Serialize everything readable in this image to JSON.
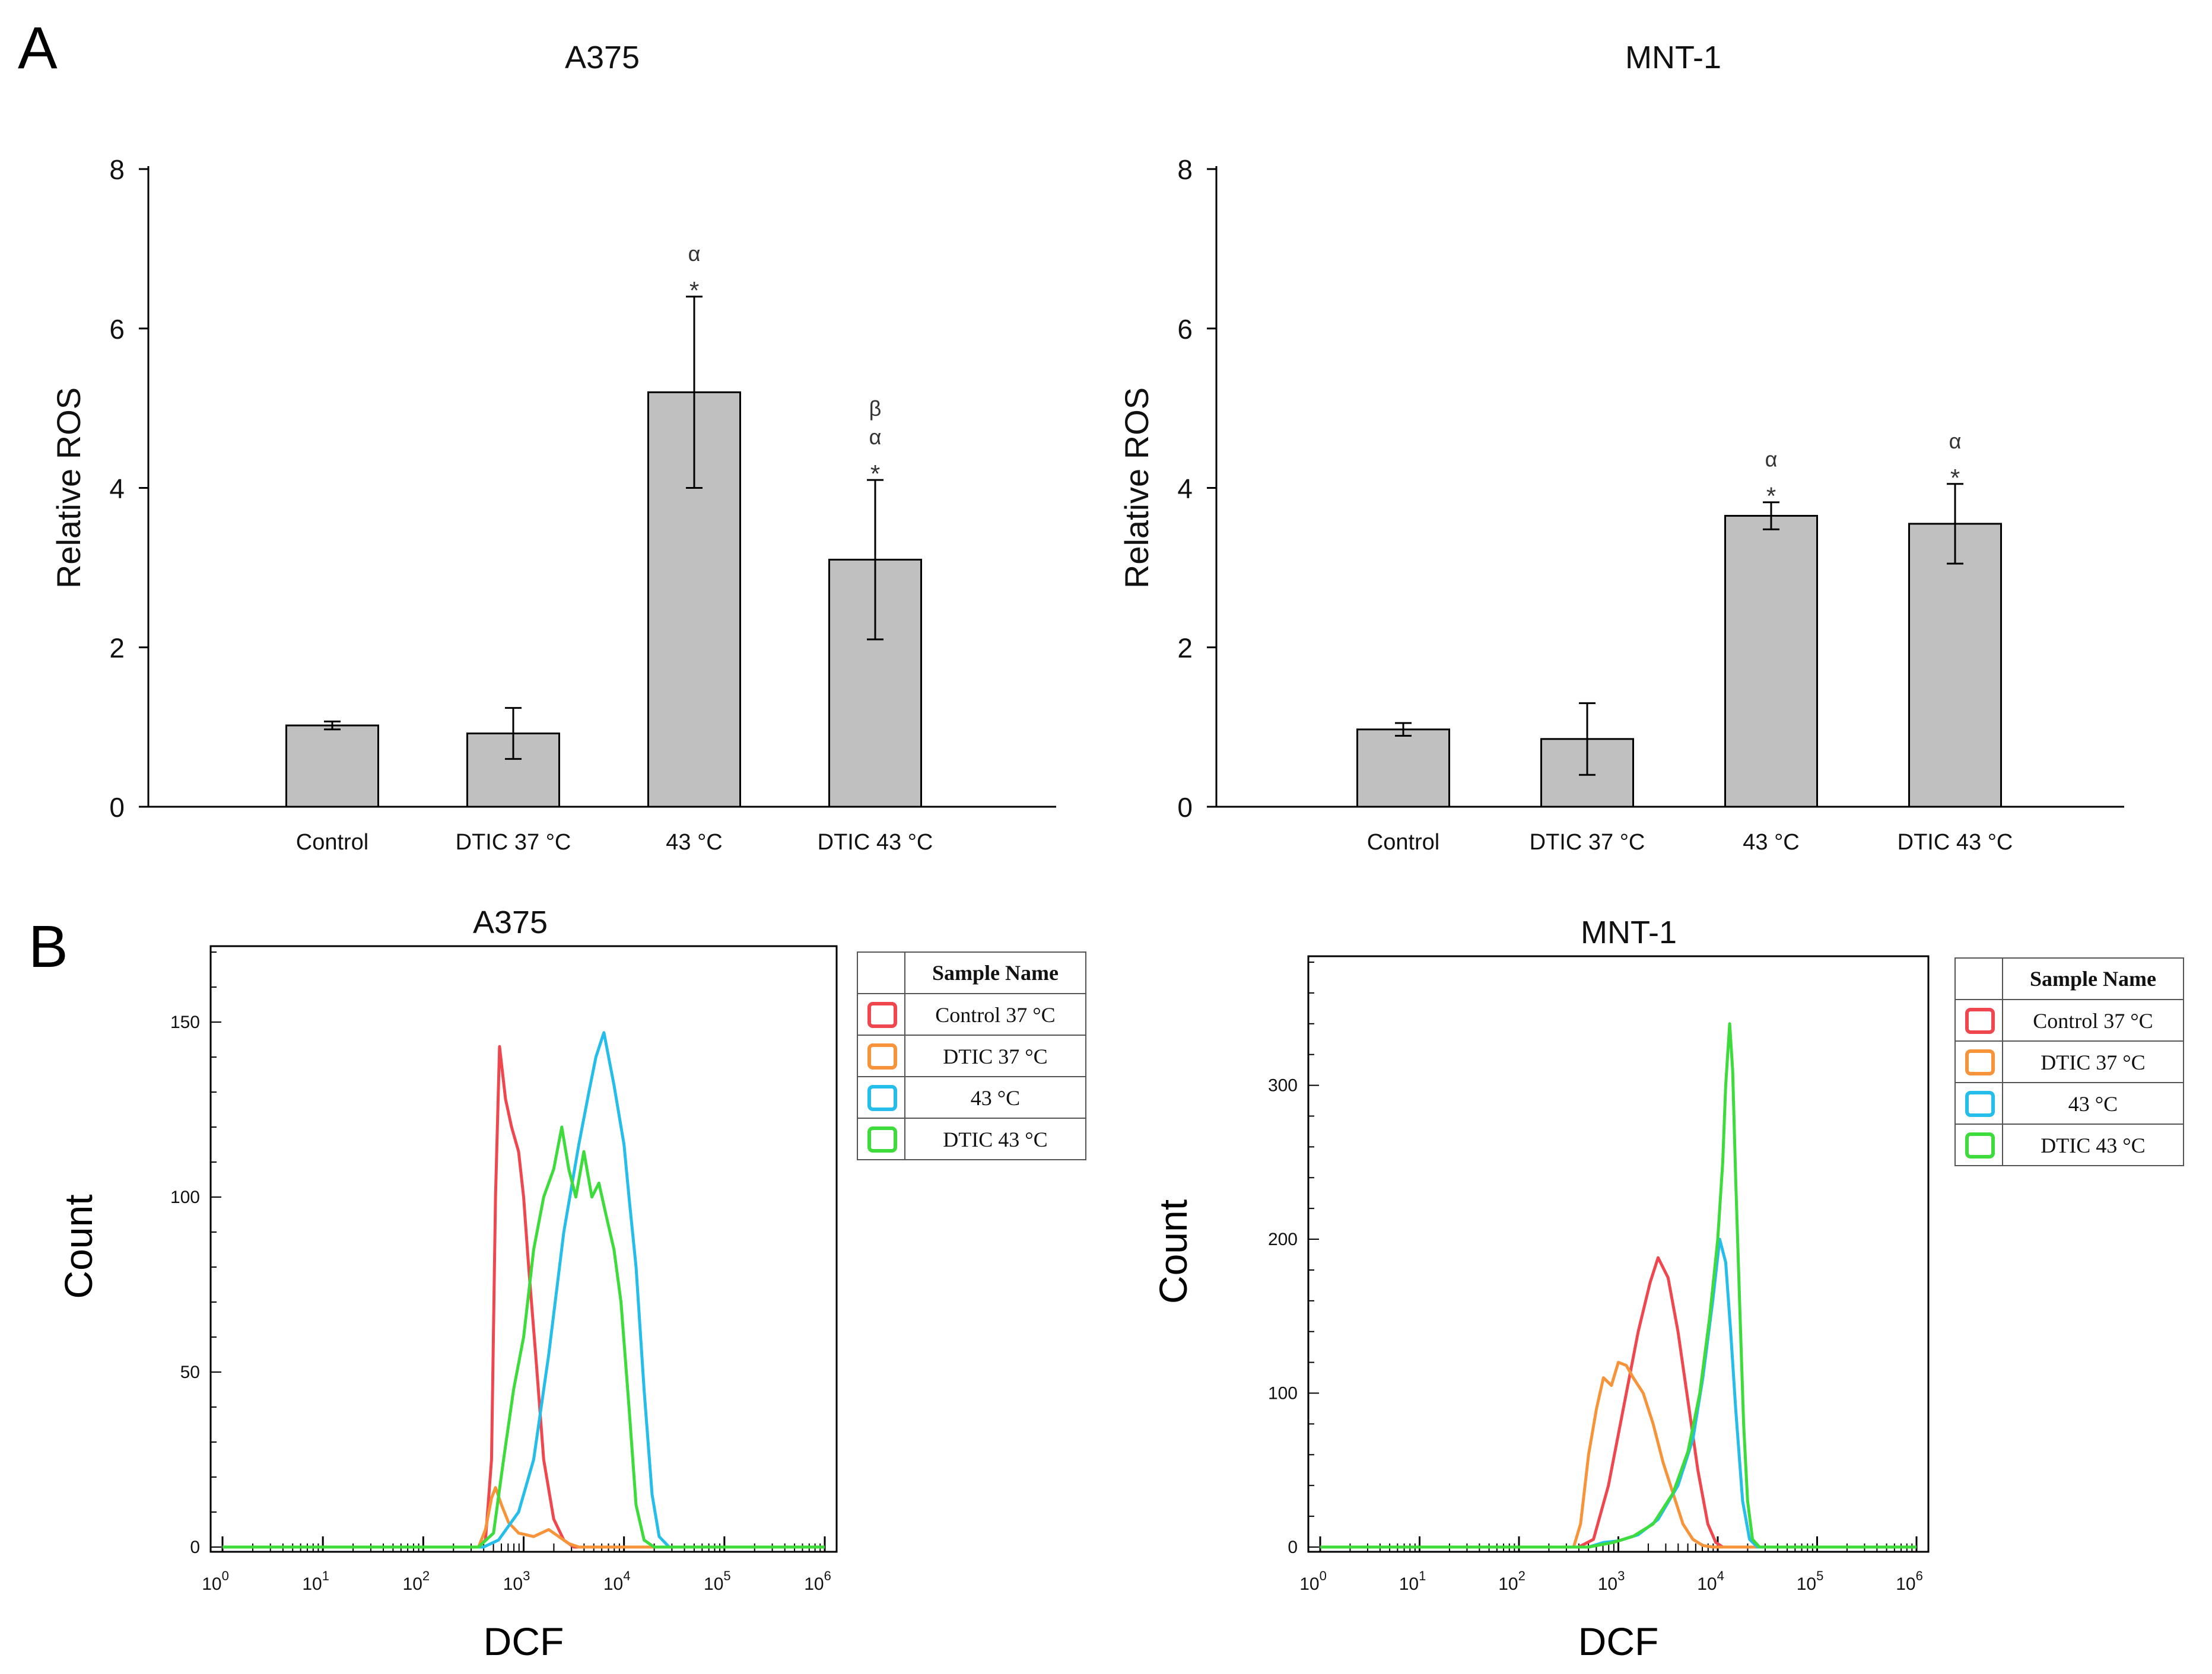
{
  "panel_labels": [
    "A",
    "B"
  ],
  "chart_data": [
    {
      "type": "bar",
      "title": "A375",
      "xlabel": "",
      "ylabel": "Relative ROS",
      "ylim": [
        0,
        8
      ],
      "yticks": [
        "0",
        "2",
        "4",
        "6",
        "8"
      ],
      "categories": [
        "Control",
        "DTIC 37 °C",
        "43 °C",
        "DTIC 43 °C"
      ],
      "values": [
        1.02,
        0.92,
        5.2,
        3.1
      ],
      "errors": [
        0.05,
        0.32,
        1.2,
        1.0
      ],
      "annotations": [
        [],
        [],
        [
          "α",
          "*"
        ],
        [
          "β",
          "α",
          "*"
        ]
      ],
      "bar_color": "#c0c0c0"
    },
    {
      "type": "bar",
      "title": "MNT-1",
      "xlabel": "",
      "ylabel": "Relative ROS",
      "ylim": [
        0,
        8
      ],
      "yticks": [
        "0",
        "2",
        "4",
        "6",
        "8"
      ],
      "categories": [
        "Control",
        "DTIC 37 °C",
        "43 °C",
        "DTIC 43 °C"
      ],
      "values": [
        0.97,
        0.85,
        3.65,
        3.55
      ],
      "errors": [
        0.08,
        0.45,
        0.17,
        0.5
      ],
      "annotations": [
        [],
        [],
        [
          "α",
          "*"
        ],
        [
          "α",
          "*"
        ]
      ],
      "bar_color": "#c0c0c0"
    },
    {
      "type": "line",
      "title": "A375",
      "xlabel": "DCF",
      "ylabel": "Count",
      "xscale": "log",
      "xlim": [
        0,
        6
      ],
      "ylim": [
        0,
        170
      ],
      "yticks": [
        0,
        50,
        100,
        150
      ],
      "xtick_labels": [
        "10",
        "10",
        "10",
        "10",
        "10",
        "10",
        "10"
      ],
      "xtick_exponents": [
        "0",
        "1",
        "2",
        "3",
        "4",
        "5",
        "6"
      ],
      "legend_title": "Sample Name",
      "series": [
        {
          "name": "Control 37 °C",
          "color": "#f0474e",
          "points": [
            [
              0,
              0
            ],
            [
              2.55,
              0
            ],
            [
              2.62,
              2
            ],
            [
              2.68,
              25
            ],
            [
              2.72,
              100
            ],
            [
              2.76,
              143
            ],
            [
              2.82,
              128
            ],
            [
              2.88,
              120
            ],
            [
              2.95,
              113
            ],
            [
              3.0,
              100
            ],
            [
              3.05,
              80
            ],
            [
              3.12,
              55
            ],
            [
              3.2,
              25
            ],
            [
              3.3,
              8
            ],
            [
              3.4,
              2
            ],
            [
              3.5,
              0
            ],
            [
              6,
              0
            ]
          ]
        },
        {
          "name": "DTIC 37 °C",
          "color": "#f7943a",
          "points": [
            [
              0,
              0
            ],
            [
              2.55,
              0
            ],
            [
              2.62,
              5
            ],
            [
              2.68,
              14
            ],
            [
              2.72,
              17
            ],
            [
              2.78,
              12
            ],
            [
              2.85,
              7
            ],
            [
              2.95,
              4
            ],
            [
              3.1,
              3
            ],
            [
              3.25,
              5
            ],
            [
              3.35,
              3
            ],
            [
              3.45,
              1
            ],
            [
              3.55,
              0
            ],
            [
              6,
              0
            ]
          ]
        },
        {
          "name": "43 °C",
          "color": "#25bde9",
          "points": [
            [
              0,
              0
            ],
            [
              2.6,
              0
            ],
            [
              2.75,
              2
            ],
            [
              2.95,
              10
            ],
            [
              3.1,
              25
            ],
            [
              3.25,
              55
            ],
            [
              3.4,
              90
            ],
            [
              3.55,
              115
            ],
            [
              3.65,
              130
            ],
            [
              3.72,
              140
            ],
            [
              3.8,
              147
            ],
            [
              3.9,
              132
            ],
            [
              4.0,
              115
            ],
            [
              4.05,
              100
            ],
            [
              4.12,
              80
            ],
            [
              4.2,
              45
            ],
            [
              4.28,
              15
            ],
            [
              4.35,
              3
            ],
            [
              4.45,
              0
            ],
            [
              6,
              0
            ]
          ]
        },
        {
          "name": "DTIC 43 °C",
          "color": "#3ddc3c",
          "points": [
            [
              0,
              0
            ],
            [
              2.55,
              0
            ],
            [
              2.7,
              4
            ],
            [
              2.8,
              25
            ],
            [
              2.9,
              45
            ],
            [
              3.0,
              60
            ],
            [
              3.1,
              85
            ],
            [
              3.2,
              100
            ],
            [
              3.3,
              108
            ],
            [
              3.38,
              120
            ],
            [
              3.45,
              108
            ],
            [
              3.52,
              100
            ],
            [
              3.6,
              113
            ],
            [
              3.68,
              100
            ],
            [
              3.75,
              104
            ],
            [
              3.82,
              95
            ],
            [
              3.9,
              85
            ],
            [
              3.97,
              70
            ],
            [
              4.05,
              40
            ],
            [
              4.12,
              12
            ],
            [
              4.2,
              2
            ],
            [
              4.3,
              0
            ],
            [
              6,
              0
            ]
          ]
        }
      ]
    },
    {
      "type": "line",
      "title": "MNT-1",
      "xlabel": "DCF",
      "ylabel": "Count",
      "xscale": "log",
      "xlim": [
        0,
        6
      ],
      "ylim": [
        0,
        380
      ],
      "yticks": [
        0,
        100,
        200,
        300
      ],
      "xtick_labels": [
        "10",
        "10",
        "10",
        "10",
        "10",
        "10",
        "10"
      ],
      "xtick_exponents": [
        "0",
        "1",
        "2",
        "3",
        "4",
        "5",
        "6"
      ],
      "legend_title": "Sample Name",
      "series": [
        {
          "name": "Control 37 °C",
          "color": "#f0474e",
          "points": [
            [
              0,
              0
            ],
            [
              2.6,
              0
            ],
            [
              2.75,
              5
            ],
            [
              2.9,
              40
            ],
            [
              3.05,
              90
            ],
            [
              3.2,
              140
            ],
            [
              3.32,
              172
            ],
            [
              3.4,
              188
            ],
            [
              3.5,
              175
            ],
            [
              3.6,
              140
            ],
            [
              3.7,
              95
            ],
            [
              3.8,
              50
            ],
            [
              3.9,
              15
            ],
            [
              3.98,
              3
            ],
            [
              4.05,
              0
            ],
            [
              6,
              0
            ]
          ]
        },
        {
          "name": "DTIC 37 °C",
          "color": "#f7943a",
          "points": [
            [
              0,
              0
            ],
            [
              2.55,
              0
            ],
            [
              2.62,
              15
            ],
            [
              2.7,
              60
            ],
            [
              2.78,
              90
            ],
            [
              2.85,
              110
            ],
            [
              2.93,
              105
            ],
            [
              3.0,
              120
            ],
            [
              3.08,
              118
            ],
            [
              3.15,
              110
            ],
            [
              3.25,
              100
            ],
            [
              3.35,
              80
            ],
            [
              3.45,
              55
            ],
            [
              3.55,
              35
            ],
            [
              3.65,
              15
            ],
            [
              3.75,
              5
            ],
            [
              3.85,
              1
            ],
            [
              3.95,
              0
            ],
            [
              6,
              0
            ]
          ]
        },
        {
          "name": "43 °C",
          "color": "#25bde9",
          "points": [
            [
              0,
              0
            ],
            [
              2.7,
              0
            ],
            [
              2.85,
              3
            ],
            [
              3.0,
              4
            ],
            [
              3.2,
              8
            ],
            [
              3.4,
              18
            ],
            [
              3.6,
              40
            ],
            [
              3.75,
              70
            ],
            [
              3.85,
              110
            ],
            [
              3.95,
              160
            ],
            [
              4.02,
              200
            ],
            [
              4.08,
              185
            ],
            [
              4.13,
              140
            ],
            [
              4.18,
              90
            ],
            [
              4.25,
              30
            ],
            [
              4.32,
              5
            ],
            [
              4.4,
              0
            ],
            [
              6,
              0
            ]
          ]
        },
        {
          "name": "DTIC 43 °C",
          "color": "#3ddc3c",
          "points": [
            [
              0,
              0
            ],
            [
              2.7,
              0
            ],
            [
              2.95,
              3
            ],
            [
              3.15,
              7
            ],
            [
              3.35,
              15
            ],
            [
              3.55,
              35
            ],
            [
              3.7,
              62
            ],
            [
              3.82,
              100
            ],
            [
              3.92,
              150
            ],
            [
              4.0,
              200
            ],
            [
              4.05,
              250
            ],
            [
              4.08,
              300
            ],
            [
              4.12,
              340
            ],
            [
              4.15,
              310
            ],
            [
              4.18,
              240
            ],
            [
              4.22,
              160
            ],
            [
              4.26,
              80
            ],
            [
              4.3,
              30
            ],
            [
              4.35,
              5
            ],
            [
              4.42,
              0
            ],
            [
              6,
              0
            ]
          ]
        }
      ]
    }
  ]
}
